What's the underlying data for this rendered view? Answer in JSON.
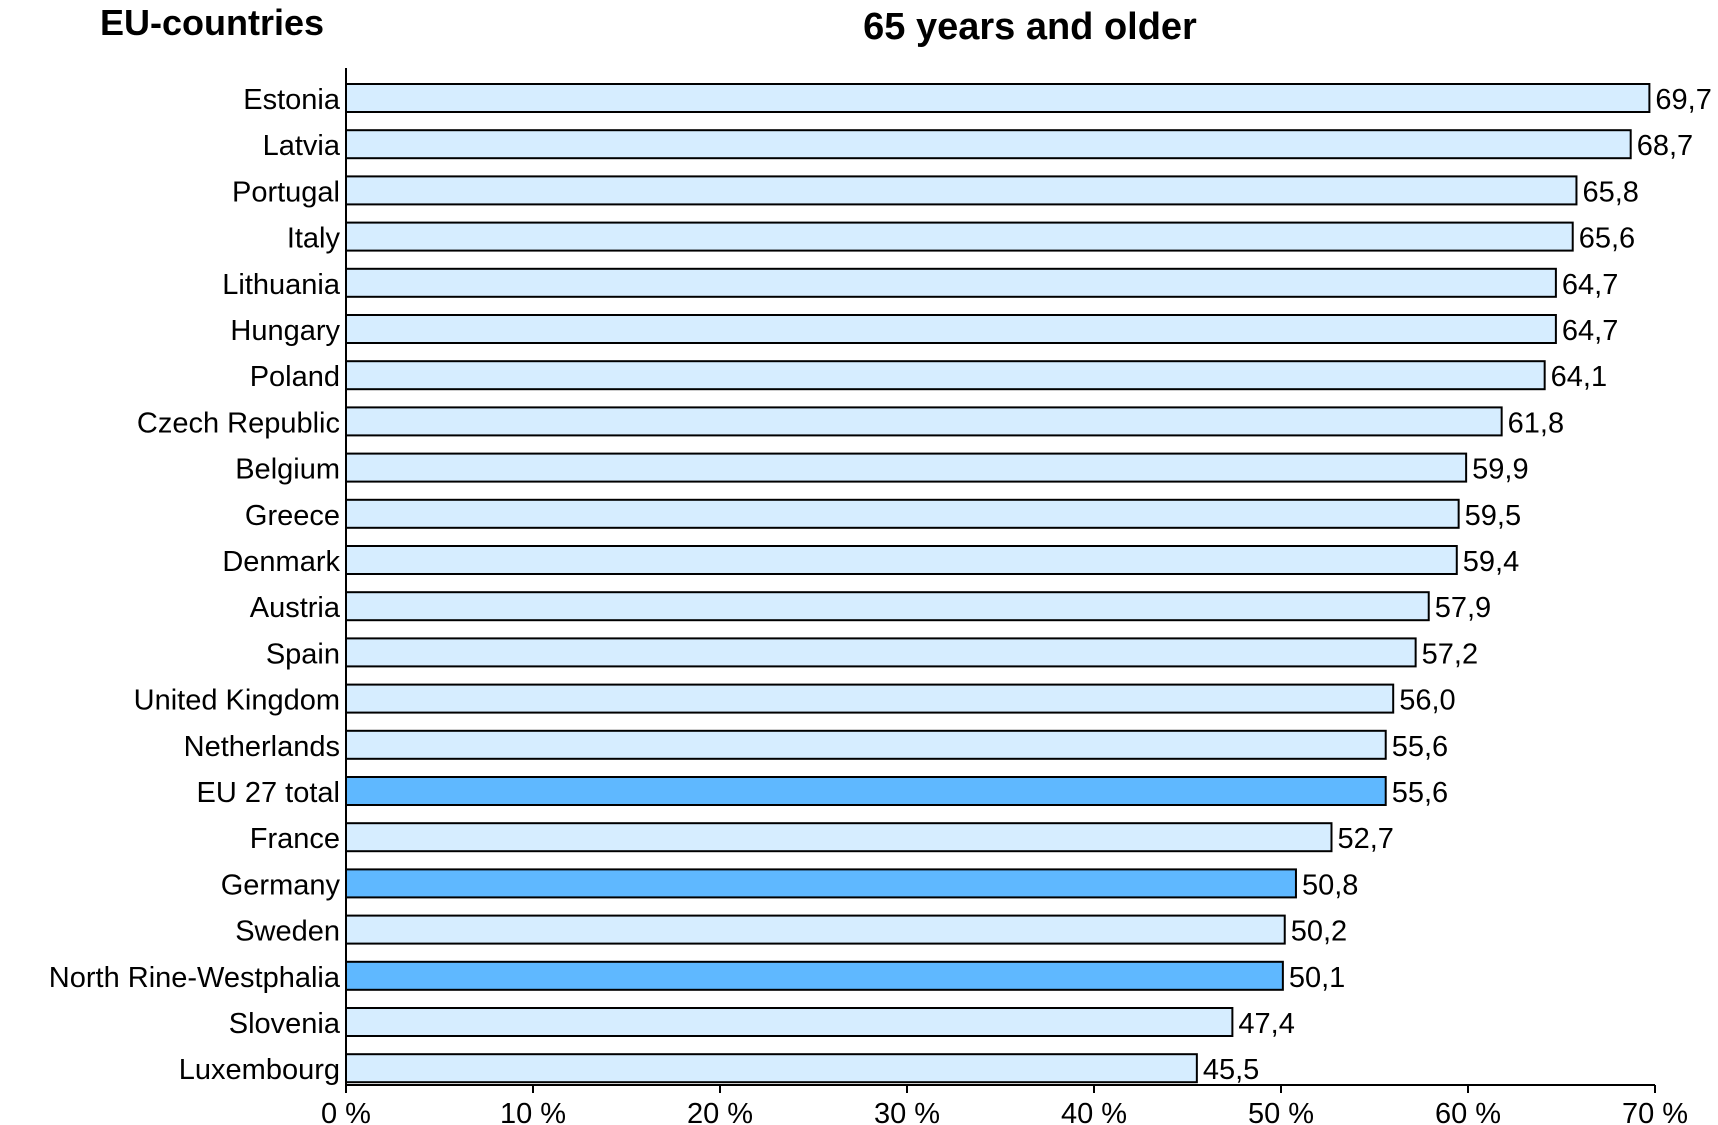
{
  "corner_label": "EU-countries",
  "chart_data": {
    "type": "bar",
    "orientation": "horizontal",
    "title": "65 years and older",
    "xlabel": "",
    "ylabel": "",
    "xlim": [
      0,
      70
    ],
    "xticks": [
      0,
      10,
      20,
      30,
      40,
      50,
      60,
      70
    ],
    "xtick_labels": [
      "0 %",
      "10 %",
      "20 %",
      "30 %",
      "40 %",
      "50 %",
      "60 %",
      "70 %"
    ],
    "grid": false,
    "legend": "none",
    "categories": [
      "Estonia",
      "Latvia",
      "Portugal",
      "Italy",
      "Lithuania",
      "Hungary",
      "Poland",
      "Czech Republic",
      "Belgium",
      "Greece",
      "Denmark",
      "Austria",
      "Spain",
      "United Kingdom",
      "Netherlands",
      "EU 27 total",
      "France",
      "Germany",
      "Sweden",
      "North Rine-Westphalia",
      "Slovenia",
      "Luxembourg"
    ],
    "values": [
      69.7,
      68.7,
      65.8,
      65.6,
      64.7,
      64.7,
      64.1,
      61.8,
      59.9,
      59.5,
      59.4,
      57.9,
      57.2,
      56.0,
      55.6,
      55.6,
      52.7,
      50.8,
      50.2,
      50.1,
      47.4,
      45.5
    ],
    "value_labels": [
      "69,7",
      "68,7",
      "65,8",
      "65,6",
      "64,7",
      "64,7",
      "64,1",
      "61,8",
      "59,9",
      "59,5",
      "59,4",
      "57,9",
      "57,2",
      "56,0",
      "55,6",
      "55,6",
      "52,7",
      "50,8",
      "50,2",
      "50,1",
      "47,4",
      "45,5"
    ],
    "highlight": [
      "EU 27 total",
      "Germany",
      "North Rine-Westphalia"
    ],
    "colors": {
      "default_bar": "#d6edff",
      "highlight_bar": "#5fb8ff",
      "bar_outline": "#000000",
      "axis": "#000000"
    }
  }
}
